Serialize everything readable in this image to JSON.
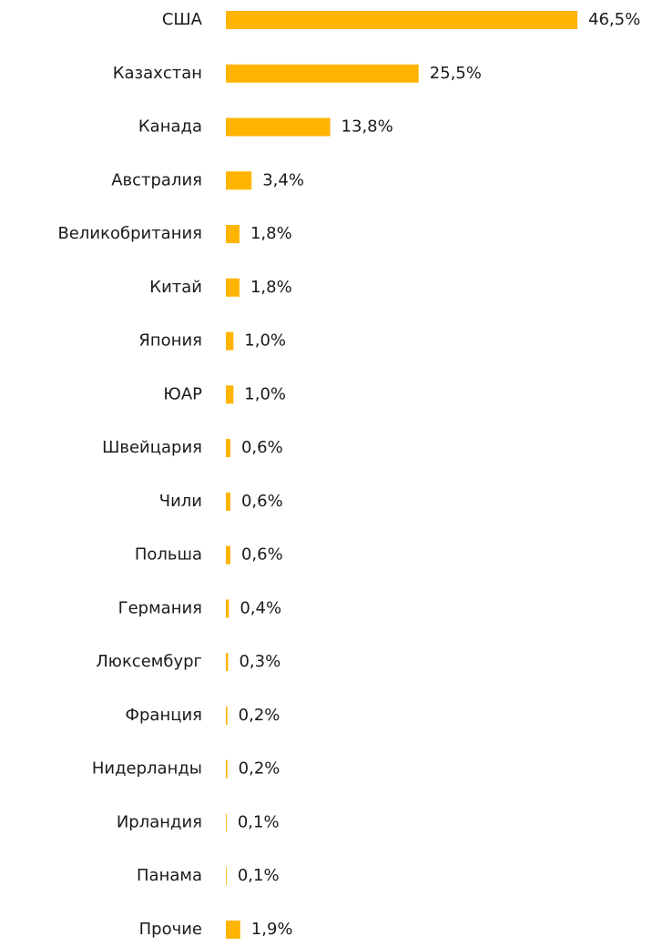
{
  "chart_data": {
    "type": "hbar",
    "categories": [
      "США",
      "Казахстан",
      "Канада",
      "Австралия",
      "Великобритания",
      "Китай",
      "Япония",
      "ЮАР",
      "Швейцария",
      "Чили",
      "Польша",
      "Германия",
      "Люксембург",
      "Франция",
      "Нидерланды",
      "Ирландия",
      "Панама",
      "Прочие"
    ],
    "values": [
      46.5,
      25.5,
      13.8,
      3.4,
      1.8,
      1.8,
      1.0,
      1.0,
      0.6,
      0.6,
      0.6,
      0.4,
      0.3,
      0.2,
      0.2,
      0.1,
      0.1,
      1.9
    ],
    "value_labels": [
      "46,5%",
      "25,5%",
      "13,8%",
      "3,4%",
      "1,8%",
      "1,8%",
      "1,0%",
      "1,0%",
      "0,6%",
      "0,6%",
      "0,6%",
      "0,4%",
      "0,3%",
      "0,2%",
      "0,2%",
      "0,1%",
      "0,1%",
      "1,9%"
    ],
    "color": "#FFB400"
  }
}
